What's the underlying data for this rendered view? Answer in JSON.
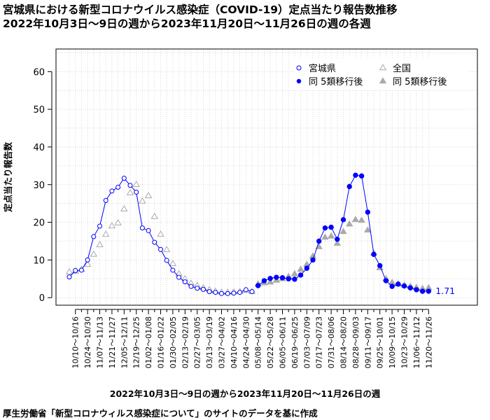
{
  "title_line1": "宮城県における新型コロナウイルス感染症（COVID-19）定点当たり報告数推移",
  "title_line2": "2022年10月3日～9日の週から2023年11月20日～11月26日の週の各週",
  "source": "厚生労働省「新型コロナウィルス感染症について」のサイトのデータを基に作成",
  "chart_data": {
    "type": "line",
    "xlabel": "2022年10月3日～9日の週から2023年11月20日～11月26日の週",
    "ylabel": "定点当たり報告数",
    "ylim": [
      -2,
      66
    ],
    "yticks": [
      0,
      10,
      20,
      30,
      40,
      50,
      60
    ],
    "grid": true,
    "legend_placement": "top-right",
    "tick_labels": [
      "10/10～10/16",
      "10/24～10/30",
      "11/07～11/13",
      "11/21～11/27",
      "12/05～12/11",
      "12/19～12/25",
      "01/02～01/08",
      "01/16～01/22",
      "01/30～02/05",
      "02/13～02/19",
      "02/27～03/05",
      "03/13～03/19",
      "03/27～04/02",
      "04/10～04/16",
      "04/24～04/30",
      "05/08～05/14",
      "05/22～05/28",
      "06/05～06/11",
      "06/19～06/25",
      "07/03～07/09",
      "07/17～07/23",
      "07/31～08/06",
      "08/14～08/20",
      "08/28～09/03",
      "09/11～09/17",
      "09/25～10/01",
      "10/09～10/15",
      "10/23～10/29",
      "11/06～11/12",
      "11/20～11/26"
    ],
    "end_label": "1.71",
    "series": [
      {
        "name": "宮城県",
        "marker": "open-circle",
        "color": "#0000ff",
        "start_index": 0,
        "values": [
          5.5,
          7.2,
          7.3,
          10.0,
          16.2,
          19.0,
          25.8,
          28.3,
          29.3,
          31.7,
          29.8,
          28.0,
          18.5,
          17.8,
          14.7,
          12.8,
          9.9,
          7.3,
          5.4,
          4.2,
          3.0,
          2.5,
          2.2,
          1.6,
          1.4,
          1.1,
          1.1,
          1.2,
          1.4,
          2.1,
          1.6
        ]
      },
      {
        "name": "全国",
        "marker": "open-triangle",
        "color": "#aaaaaa",
        "start_index": 0,
        "values": [
          6.8,
          7.0,
          7.5,
          8.8,
          11.5,
          14.0,
          16.8,
          19.0,
          19.8,
          23.5,
          27.8,
          30.0,
          25.6,
          27.0,
          21.5,
          16.8,
          12.7,
          9.0,
          6.3,
          5.0,
          3.8,
          3.2,
          2.6,
          2.1,
          1.7,
          1.4,
          1.4,
          1.5,
          1.6,
          1.9,
          1.6
        ]
      },
      {
        "name": "同 5類移行後",
        "marker": "filled-circle",
        "color": "#0000ff",
        "start_index": 31,
        "values": [
          3.2,
          4.5,
          5.1,
          5.4,
          5.3,
          5.0,
          4.9,
          6.0,
          7.8,
          10.0,
          15.0,
          18.5,
          18.7,
          15.5,
          20.7,
          29.5,
          32.5,
          32.3,
          22.7,
          11.5,
          8.5,
          4.5,
          3.0,
          3.6,
          3.1,
          2.6,
          2.1,
          1.7,
          1.71
        ]
      },
      {
        "name": "同 5類移行後",
        "marker": "filled-triangle",
        "color": "#aaaaaa",
        "start_index": 31,
        "values": [
          3.6,
          3.9,
          4.1,
          4.6,
          5.0,
          5.6,
          6.3,
          7.5,
          8.8,
          11.0,
          13.5,
          16.0,
          16.3,
          14.4,
          17.5,
          19.5,
          20.7,
          20.5,
          17.9,
          11.8,
          7.9,
          5.0,
          4.0,
          3.6,
          3.3,
          3.0,
          2.7,
          2.4,
          2.6
        ]
      }
    ]
  }
}
